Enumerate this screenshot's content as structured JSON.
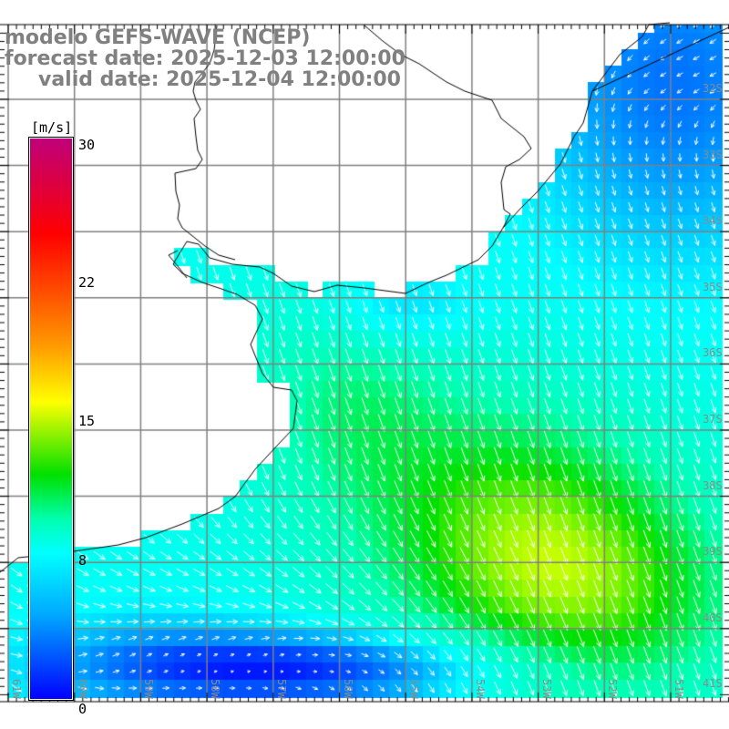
{
  "header": {
    "model": "modelo GEFS-WAVE (NCEP)",
    "forecast": "forecast date: 2025-12-03 12:00:00",
    "valid": "valid date: 2025-12-04 12:00:00"
  },
  "colorbar": {
    "unit": "[m/s]",
    "ticks": [
      "30",
      "22",
      "15",
      "8",
      "0"
    ],
    "tick_values": [
      30,
      22,
      15,
      8,
      0
    ]
  },
  "lat_labels": [
    "32S",
    "33S",
    "34S",
    "35S",
    "36S",
    "37S",
    "38S",
    "39S",
    "40S",
    "41S"
  ],
  "lon_labels": [
    "61W",
    "60W",
    "59W",
    "58W",
    "57W",
    "56W",
    "55W",
    "54W",
    "53W",
    "52W",
    "51W"
  ],
  "colors": {
    "land": "#ffffff",
    "grid": "#808080",
    "arrow": "#ffffff",
    "coast": "#000000"
  }
}
